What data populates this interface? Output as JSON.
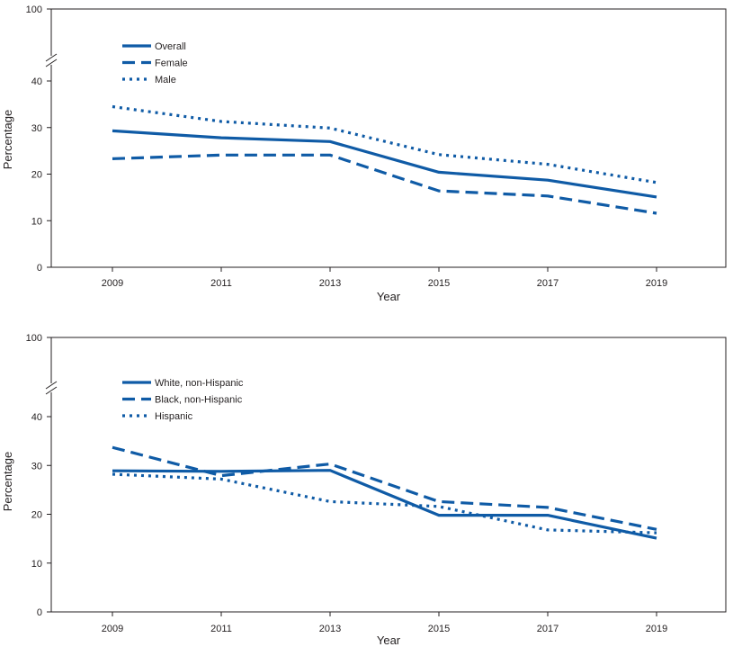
{
  "colors": {
    "series": "#0f5ba6",
    "axis": "#231f20",
    "background": "#ffffff"
  },
  "chart_data": [
    {
      "type": "line",
      "title": "",
      "xlabel": "Year",
      "ylabel": "Percentage",
      "x": [
        2009,
        2011,
        2013,
        2015,
        2017,
        2019
      ],
      "x_tick_labels": [
        "2009",
        "2011",
        "2013",
        "2015",
        "2017",
        "2019"
      ],
      "ylim": [
        0,
        100
      ],
      "y_axis_break": [
        40,
        100
      ],
      "y_tick_labels": [
        "0",
        "10",
        "20",
        "30",
        "40",
        "100"
      ],
      "grid": false,
      "legend_position": "top-left",
      "series": [
        {
          "name": "Overall",
          "style": "solid",
          "values": [
            29.3,
            27.8,
            27.0,
            20.4,
            18.7,
            15.1
          ]
        },
        {
          "name": "Female",
          "style": "dashed",
          "values": [
            23.3,
            24.1,
            24.1,
            16.4,
            15.3,
            11.6
          ]
        },
        {
          "name": "Male",
          "style": "dotted",
          "values": [
            34.5,
            31.3,
            29.9,
            24.2,
            22.1,
            18.2
          ]
        }
      ]
    },
    {
      "type": "line",
      "title": "",
      "xlabel": "Year",
      "ylabel": "Percentage",
      "x": [
        2009,
        2011,
        2013,
        2015,
        2017,
        2019
      ],
      "x_tick_labels": [
        "2009",
        "2011",
        "2013",
        "2015",
        "2017",
        "2019"
      ],
      "ylim": [
        0,
        100
      ],
      "y_axis_break": [
        40,
        100
      ],
      "y_tick_labels": [
        "0",
        "10",
        "20",
        "30",
        "40",
        "100"
      ],
      "grid": false,
      "legend_position": "top-left",
      "series": [
        {
          "name": "White, non-Hispanic",
          "style": "solid",
          "values": [
            28.9,
            28.8,
            29.0,
            19.8,
            19.8,
            15.1
          ]
        },
        {
          "name": "Black, non-Hispanic",
          "style": "dashed",
          "values": [
            33.7,
            27.9,
            30.3,
            22.6,
            21.4,
            16.9
          ]
        },
        {
          "name": "Hispanic",
          "style": "dotted",
          "values": [
            28.2,
            27.2,
            22.6,
            21.6,
            16.8,
            16.2
          ]
        }
      ]
    }
  ]
}
